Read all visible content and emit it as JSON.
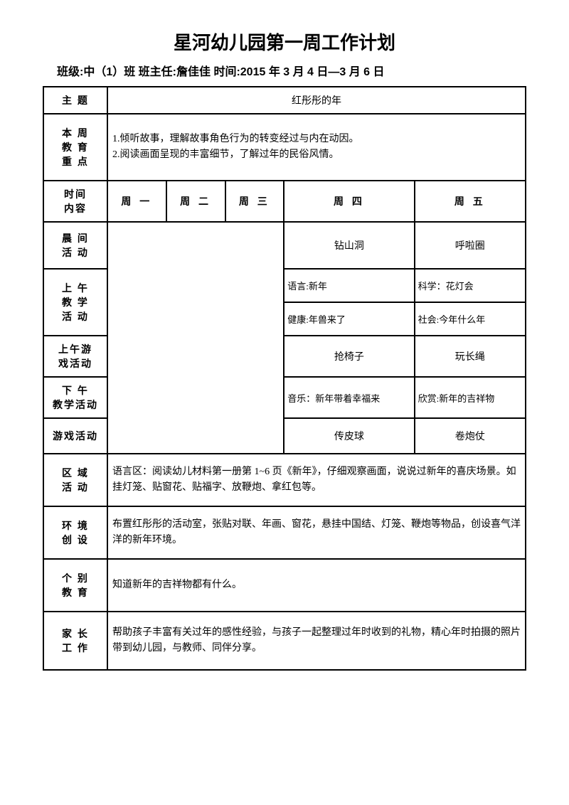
{
  "title": "星河幼儿园第一周工作计划",
  "subtitle": "班级:中（1）班  班主任:詹佳佳  时间:2015 年 3 月 4 日—3 月 6 日",
  "labels": {
    "theme": "主 题",
    "weekFocus1": "本 周",
    "weekFocus2": "教 育",
    "weekFocus3": "重 点",
    "timeContent1": "时间",
    "timeContent2": "内容",
    "morning1": "晨 间",
    "morning2": "活 动",
    "amTeach1": "上 午",
    "amTeach2": "教 学",
    "amTeach3": "活 动",
    "amGame1": "上午游",
    "amGame2": "戏活动",
    "pmTeach1": "下 午",
    "pmTeach2": "教学活动",
    "gameAct": "游戏活动",
    "area1": "区 域",
    "area2": "活 动",
    "env1": "环 境",
    "env2": "创 设",
    "indiv1": "个 别",
    "indiv2": "教 育",
    "parent1": "家 长",
    "parent2": "工 作"
  },
  "theme": "红彤彤的年",
  "weekFocus": "1.倾听故事，理解故事角色行为的转变经过与内在动因。\n2.阅读画面呈现的丰富细节，了解过年的民俗风情。",
  "days": {
    "mon": "周 一",
    "tue": "周 二",
    "wed": "周 三",
    "thu": "周 四",
    "fri": "周 五"
  },
  "morning": {
    "thu": "钻山洞",
    "fri": "呼啦圈"
  },
  "amTeach": {
    "thu1": "语言:新年",
    "fri1": "科学：花灯会",
    "thu2": "健康:年兽来了",
    "fri2": "社会:今年什么年"
  },
  "amGame": {
    "thu": "抢椅子",
    "fri": "玩长绳"
  },
  "pmTeach": {
    "thu": "音乐：新年带着幸福来",
    "fri": "欣赏:新年的吉祥物"
  },
  "gameAct": {
    "thu": "传皮球",
    "fri": "卷炮仗"
  },
  "area": "语言区：阅读幼儿材料第一册第 1~6 页《新年》，仔细观察画面，说说过新年的喜庆场景。如挂灯笼、贴窗花、贴福字、放鞭炮、拿红包等。",
  "env": "布置红彤彤的活动室，张贴对联、年画、窗花，悬挂中国结、灯笼、鞭炮等物品，创设喜气洋洋的新年环境。",
  "indiv": "知道新年的吉祥物都有什么。",
  "parent": "帮助孩子丰富有关过年的感性经验，与孩子一起整理过年时收到的礼物，精心年时拍摄的照片带到幼儿园，与教师、同伴分享。"
}
